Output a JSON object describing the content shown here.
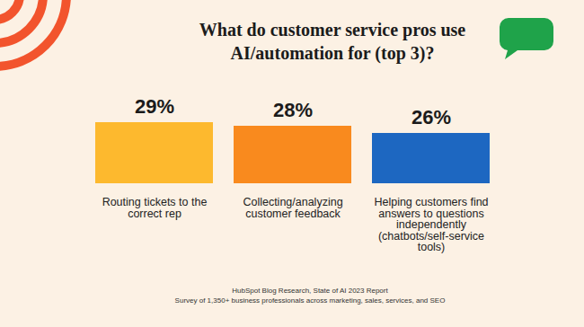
{
  "chart_data": {
    "type": "bar",
    "title": "What do customer service pros use AI/automation for (top 3)?",
    "categories": [
      "Routing tickets to the correct rep",
      "Collecting/analyzing customer feedback",
      "Helping customers find answers to questions independently (chatbots/self-service tools)"
    ],
    "values": [
      29,
      28,
      26
    ],
    "value_labels": [
      "29%",
      "28%",
      "26%"
    ],
    "colors": [
      "#fdb92e",
      "#f98a1e",
      "#1d67c1"
    ],
    "ylim": [
      12,
      30
    ],
    "data_labels": true,
    "tick_labels": "x",
    "grid": false,
    "caption": [
      "HubSpot Blog Research, State of AI 2023 Report",
      "Survey of 1,350+ business professionals across marketing, sales, services, and SEO"
    ]
  }
}
